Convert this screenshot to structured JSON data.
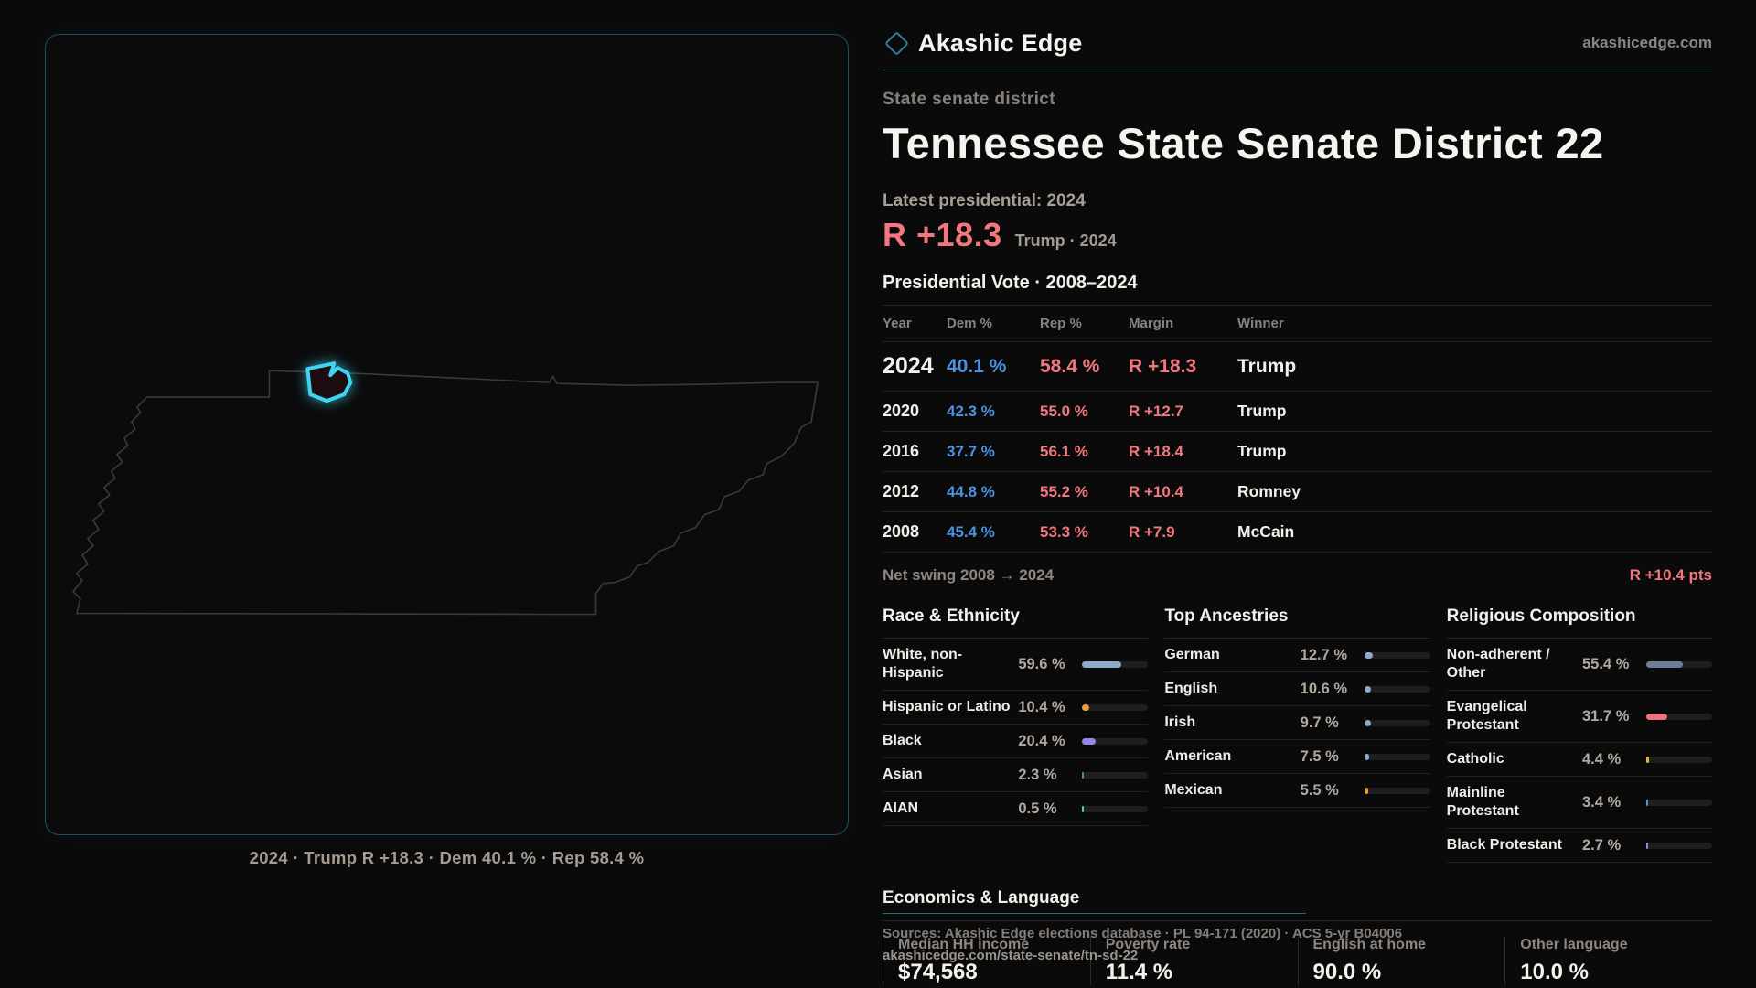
{
  "header": {
    "brand": "Akashic Edge",
    "site": "akashicedge.com",
    "kicker": "State senate district",
    "title": "Tennessee State Senate District 22"
  },
  "summary": {
    "latest_label": "Latest presidential: 2024",
    "margin": "R +18.3",
    "margin_sub": "Trump · 2024"
  },
  "table": {
    "title": "Presidential Vote · 2008–2024",
    "headers": {
      "year": "Year",
      "dem": "Dem %",
      "rep": "Rep %",
      "margin": "Margin",
      "winner": "Winner"
    },
    "rows": [
      {
        "year": "2024",
        "dem": "40.1 %",
        "rep": "58.4 %",
        "margin": "R +18.3",
        "winner": "Trump"
      },
      {
        "year": "2020",
        "dem": "42.3 %",
        "rep": "55.0 %",
        "margin": "R +12.7",
        "winner": "Trump"
      },
      {
        "year": "2016",
        "dem": "37.7 %",
        "rep": "56.1 %",
        "margin": "R +18.4",
        "winner": "Trump"
      },
      {
        "year": "2012",
        "dem": "44.8 %",
        "rep": "55.2 %",
        "margin": "R +10.4",
        "winner": "Romney"
      },
      {
        "year": "2008",
        "dem": "45.4 %",
        "rep": "53.3 %",
        "margin": "R +7.9",
        "winner": "McCain"
      }
    ]
  },
  "net_swing": {
    "label": "Net swing 2008 → 2024",
    "value": "R +10.4 pts"
  },
  "demographics": {
    "race": {
      "title": "Race & Ethnicity",
      "rows": [
        {
          "label": "White, non-Hispanic",
          "value": "59.6 %",
          "pct": 59.6,
          "color": "#8fa9c9"
        },
        {
          "label": "Hispanic or Latino",
          "value": "10.4 %",
          "pct": 10.4,
          "color": "#e5a13c"
        },
        {
          "label": "Black",
          "value": "20.4 %",
          "pct": 20.4,
          "color": "#9587ea"
        },
        {
          "label": "Asian",
          "value": "2.3 %",
          "pct": 2.3,
          "color": "#2aa876"
        },
        {
          "label": "AIAN",
          "value": "0.5 %",
          "pct": 0.5,
          "color": "#57c7d4"
        }
      ]
    },
    "ancestries": {
      "title": "Top Ancestries",
      "rows": [
        {
          "label": "German",
          "value": "12.7 %",
          "pct": 12.7,
          "color": "#8fa9c9"
        },
        {
          "label": "English",
          "value": "10.6 %",
          "pct": 10.6,
          "color": "#8fa9c9"
        },
        {
          "label": "Irish",
          "value": "9.7 %",
          "pct": 9.7,
          "color": "#8fa9c9"
        },
        {
          "label": "American",
          "value": "7.5 %",
          "pct": 7.5,
          "color": "#8fa9c9"
        },
        {
          "label": "Mexican",
          "value": "5.5 %",
          "pct": 5.5,
          "color": "#e5a13c"
        }
      ]
    },
    "religion": {
      "title": "Religious Composition",
      "rows": [
        {
          "label": "Non-adherent / Other",
          "value": "55.4 %",
          "pct": 55.4,
          "color": "#6e7c96"
        },
        {
          "label": "Evangelical Protestant",
          "value": "31.7 %",
          "pct": 31.7,
          "color": "#e8757d"
        },
        {
          "label": "Catholic",
          "value": "4.4 %",
          "pct": 4.4,
          "color": "#e5b33c"
        },
        {
          "label": "Mainline Protestant",
          "value": "3.4 %",
          "pct": 3.4,
          "color": "#4f94e2"
        },
        {
          "label": "Black Protestant",
          "value": "2.7 %",
          "pct": 2.7,
          "color": "#9587ea"
        }
      ]
    }
  },
  "economics": {
    "title": "Economics & Language",
    "stats": [
      {
        "label": "Median HH income",
        "value": "$74,568"
      },
      {
        "label": "Poverty rate",
        "value": "11.4 %"
      },
      {
        "label": "English at home",
        "value": "90.0 %"
      },
      {
        "label": "Other language",
        "value": "10.0 %"
      }
    ]
  },
  "map": {
    "caption": "2024 · Trump R +18.3 · Dem 40.1 % · Rep 58.4 %",
    "highlight": "Senate District 22"
  },
  "footer": {
    "sources": "Sources: Akashic Edge elections database · PL 94-171 (2020) · ACS 5-yr B04006",
    "url": "akashicedge.com/state-senate/tn-sd-22"
  },
  "colors": {
    "accent_red": "#f2777f",
    "accent_blue": "#4c92e0",
    "accent_teal": "#2d8096",
    "panel_border": "#1c5260"
  }
}
